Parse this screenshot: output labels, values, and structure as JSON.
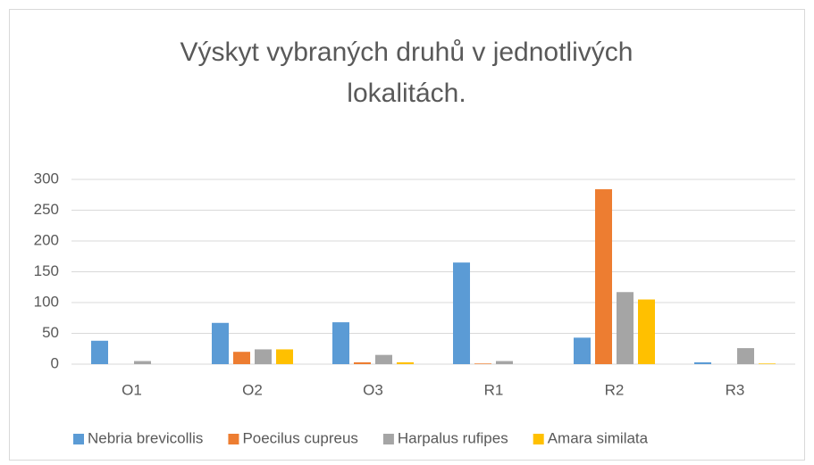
{
  "chart_data": {
    "type": "bar",
    "title": "Výskyt vybraných druhů v jednotlivých lokalitách.",
    "categories": [
      "O1",
      "O2",
      "O3",
      "R1",
      "R2",
      "R3"
    ],
    "series": [
      {
        "name": "Nebria brevicollis",
        "color": "#5b9bd5",
        "values": [
          38,
          67,
          68,
          165,
          43,
          3
        ]
      },
      {
        "name": "Poecilus cupreus",
        "color": "#ed7d31",
        "values": [
          0,
          20,
          3,
          1,
          284,
          0
        ]
      },
      {
        "name": "Harpalus rufipes",
        "color": "#a5a5a5",
        "values": [
          5,
          24,
          15,
          5,
          117,
          26
        ]
      },
      {
        "name": "Amara similata",
        "color": "#ffc000",
        "values": [
          0,
          24,
          3,
          0,
          105,
          1
        ]
      }
    ],
    "ylim": [
      0,
      300
    ],
    "yticks": [
      0,
      50,
      100,
      150,
      200,
      250,
      300
    ],
    "grid": true,
    "legend": "bottom"
  }
}
